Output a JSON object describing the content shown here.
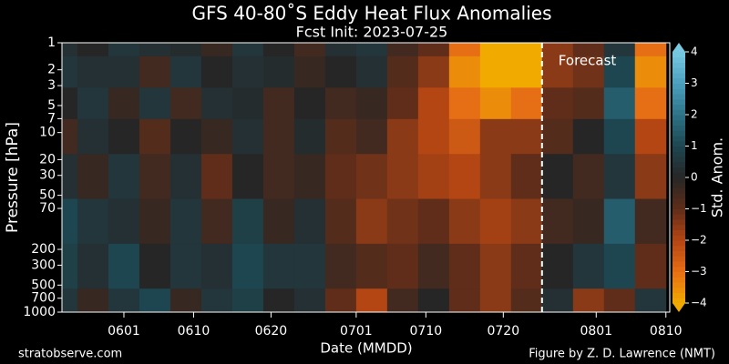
{
  "chart_data": {
    "type": "heatmap",
    "title": "GFS 40-80˚S Eddy Heat Flux Anomalies",
    "subtitle": "Fcst Init: 2023-07-25",
    "y_label": "Pressure [hPa]",
    "x_label": "Date (MMDD)",
    "colorbar_label": "Std. Anom.",
    "forecast_label": "Forecast",
    "forecast_x": 206,
    "credit_left": "stratobserve.com",
    "credit_right": "Figure by Z. D. Lawrence (NMT)",
    "log_y": true,
    "xlim": [
      144,
      222.5
    ],
    "xticks": [
      {
        "value": 152,
        "label": "0601"
      },
      {
        "value": 161,
        "label": "0610"
      },
      {
        "value": 171,
        "label": "0620"
      },
      {
        "value": 182,
        "label": "0701"
      },
      {
        "value": 191,
        "label": "0710"
      },
      {
        "value": 201,
        "label": "0720"
      },
      {
        "value": 213,
        "label": "0801"
      },
      {
        "value": 222,
        "label": "0810"
      }
    ],
    "ylim": [
      1,
      1000
    ],
    "yticks": [
      1,
      2,
      3,
      5,
      7,
      10,
      20,
      30,
      50,
      70,
      200,
      300,
      500,
      700,
      1000
    ],
    "clim": [
      -4,
      4
    ],
    "cticks": [
      {
        "value": -4,
        "label": "−4"
      },
      {
        "value": -3,
        "label": "−3"
      },
      {
        "value": -2,
        "label": "−2"
      },
      {
        "value": -1,
        "label": "−1"
      },
      0,
      1,
      2,
      3,
      4
    ],
    "x": [
      144,
      148,
      152,
      156,
      160,
      164,
      168,
      172,
      176,
      180,
      184,
      188,
      192,
      196,
      200,
      204,
      208,
      212,
      216,
      220
    ],
    "levels": [
      1,
      2,
      5,
      10,
      30,
      100,
      300,
      1000
    ],
    "z": [
      [
        0.3,
        0,
        0.5,
        0.3,
        0.2,
        -0.3,
        0.5,
        0,
        -0.5,
        0.3,
        0.5,
        -0.5,
        -1,
        -3,
        -5,
        -4,
        -1.5,
        -1,
        0.5,
        -3
      ],
      [
        0.5,
        0.3,
        0.3,
        -0.5,
        0.5,
        0,
        0.3,
        0.2,
        -0.3,
        0,
        0.3,
        -0.8,
        -1.5,
        -3.5,
        -5,
        -4.5,
        -1.5,
        -1.2,
        1,
        -3.5
      ],
      [
        0,
        0.5,
        -0.3,
        0.5,
        -0.5,
        0.3,
        0.2,
        -0.5,
        0,
        -0.5,
        -0.3,
        -1,
        -2,
        -3,
        -3.5,
        -3,
        -1,
        -0.8,
        1.5,
        -3
      ],
      [
        -0.5,
        0.3,
        0,
        -0.8,
        0,
        -0.3,
        0.3,
        -0.5,
        0.2,
        -0.8,
        -0.5,
        -1.5,
        -2,
        -2.5,
        -1.5,
        -1.5,
        -0.8,
        0,
        1,
        -2
      ],
      [
        0.3,
        -0.3,
        0.5,
        -0.5,
        0.3,
        -1,
        0,
        -0.5,
        -0.3,
        -1,
        -1.2,
        -1.5,
        -1.8,
        -2,
        -1.5,
        -1,
        0,
        -0.5,
        0.5,
        -1.5
      ],
      [
        1,
        0.5,
        0.3,
        -0.3,
        0.5,
        -0.5,
        0.8,
        -0.3,
        0.3,
        -0.8,
        -1.5,
        -1.2,
        -1,
        -1.5,
        -1.8,
        -1.5,
        -0.5,
        -0.3,
        1.5,
        -0.5
      ],
      [
        0.8,
        0.3,
        1,
        0,
        0.5,
        0.3,
        1,
        0.5,
        0.5,
        -0.5,
        -0.8,
        -1,
        -0.5,
        -1,
        -1.5,
        -1,
        0,
        0.5,
        1,
        -1
      ],
      [
        0.5,
        -0.3,
        0.5,
        1,
        -0.3,
        0.5,
        0.8,
        0,
        0.3,
        -1,
        -2,
        -0.5,
        0,
        -1,
        -1.5,
        -0.8,
        0.3,
        -1.5,
        -1,
        0.5
      ]
    ]
  }
}
